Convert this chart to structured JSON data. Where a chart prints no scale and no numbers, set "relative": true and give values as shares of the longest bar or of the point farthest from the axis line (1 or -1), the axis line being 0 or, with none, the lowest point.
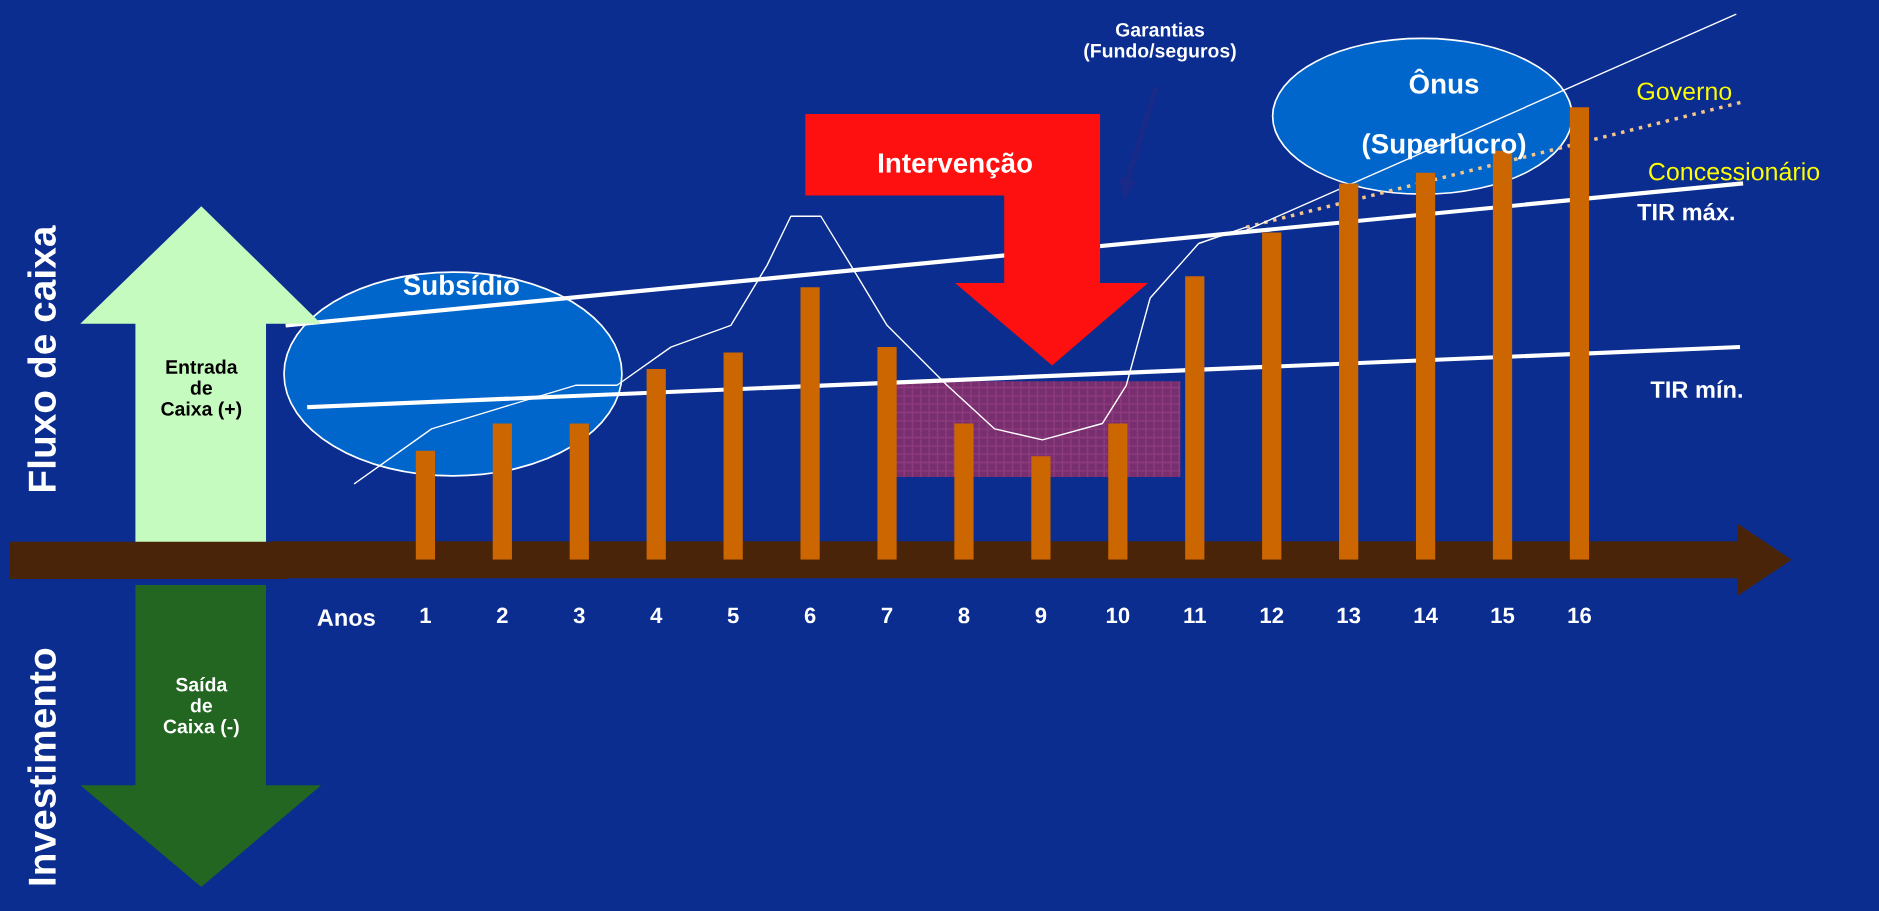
{
  "chart_data": {
    "type": "bar",
    "relative": true,
    "xlabel": "Anos",
    "x": [
      1,
      2,
      3,
      4,
      5,
      6,
      7,
      8,
      9,
      10,
      11,
      12,
      13,
      14,
      15,
      16
    ],
    "xlim": [
      -1.0,
      18.3
    ],
    "xticks": [
      1,
      2,
      3,
      4,
      5,
      6,
      7,
      8,
      9,
      10,
      11,
      12,
      13,
      14,
      15,
      16
    ],
    "series": [
      {
        "color": "#cc6600",
        "values": [
          0.2,
          0.25,
          0.25,
          0.35,
          0.38,
          0.5,
          0.39,
          0.25,
          0.19,
          0.25,
          0.52,
          0.6,
          0.69,
          0.71,
          0.75,
          0.83
        ]
      },
      {
        "type": "line",
        "name": "TIR máx.",
        "color": "#ffffff",
        "x": [
          -0.79,
          18.1
        ],
        "values": [
          0.43,
          0.69
        ]
      },
      {
        "type": "line",
        "name": "TIR mín.",
        "color": "#ffffff",
        "x": [
          -0.51,
          18.06
        ],
        "values": [
          0.28,
          0.39
        ]
      },
      {
        "type": "line",
        "name": "Governo",
        "color": "#f5c48a",
        "line_style": "dotted",
        "x": [
          11.67,
          18.13
        ],
        "values": [
          0.61,
          0.84
        ]
      },
      {
        "type": "line",
        "color": "#ffffff",
        "x": [
          11.6,
          18.03
        ],
        "values": [
          0.6,
          1.0
        ]
      },
      {
        "type": "line",
        "color": "#ffffff",
        "x": [
          0.08,
          1.08,
          2.01,
          2.95,
          3.49,
          4.19,
          4.97,
          5.44,
          5.75,
          6.14,
          6.53,
          7.0,
          7.78,
          8.4,
          9.02,
          9.8,
          10.11,
          10.42,
          11.05,
          11.67
        ],
        "values": [
          0.14,
          0.24,
          0.28,
          0.32,
          0.32,
          0.39,
          0.43,
          0.54,
          0.63,
          0.63,
          0.54,
          0.43,
          0.32,
          0.24,
          0.22,
          0.25,
          0.32,
          0.48,
          0.58,
          0.61
        ]
      }
    ],
    "annotations": [
      "Subsídio",
      "Intervenção",
      "Garantias\n(Fundo/seguros)",
      "Ônus\n\n(Superlucro)",
      "Concessionário",
      "Entrada\nde\nCaixa (+)",
      "Saída\nde\nCaixa (-)",
      "Investimento",
      "Fluxo de caixa"
    ]
  }
}
